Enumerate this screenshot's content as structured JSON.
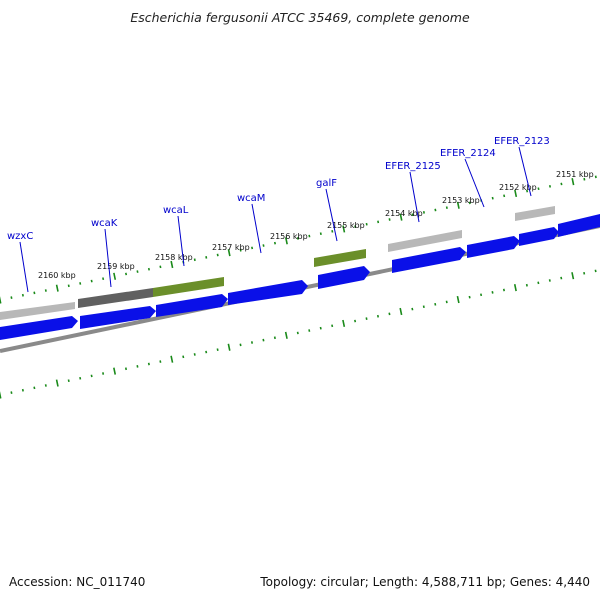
{
  "title": "Escherichia fergusonii ATCC 35469, complete genome",
  "footer": {
    "accession": "Accession: NC_011740",
    "summary": "Topology: circular; Length: 4,588,711 bp; Genes: 4,440"
  },
  "colors": {
    "cds_blue": "#0a10e8",
    "feature_gray": "#b8b8b8",
    "feature_dark_gray": "#606060",
    "feature_olive": "#6b8f2a",
    "backbone": "#8a8a8a",
    "tick_green": "#1a8a1a",
    "label_blue": "#0000cc"
  },
  "scale_labels": [
    "2160 kbp",
    "2159 kbp",
    "2158 kbp",
    "2157 kbp",
    "2156 kbp",
    "2155 kbp",
    "2154 kbp",
    "2153 kbp",
    "2152 kbp",
    "2151 kbp"
  ],
  "gene_labels": [
    "wzxC",
    "wcaK",
    "wcaL",
    "wcaM",
    "galF",
    "EFER_2125",
    "EFER_2124",
    "EFER_2123"
  ]
}
